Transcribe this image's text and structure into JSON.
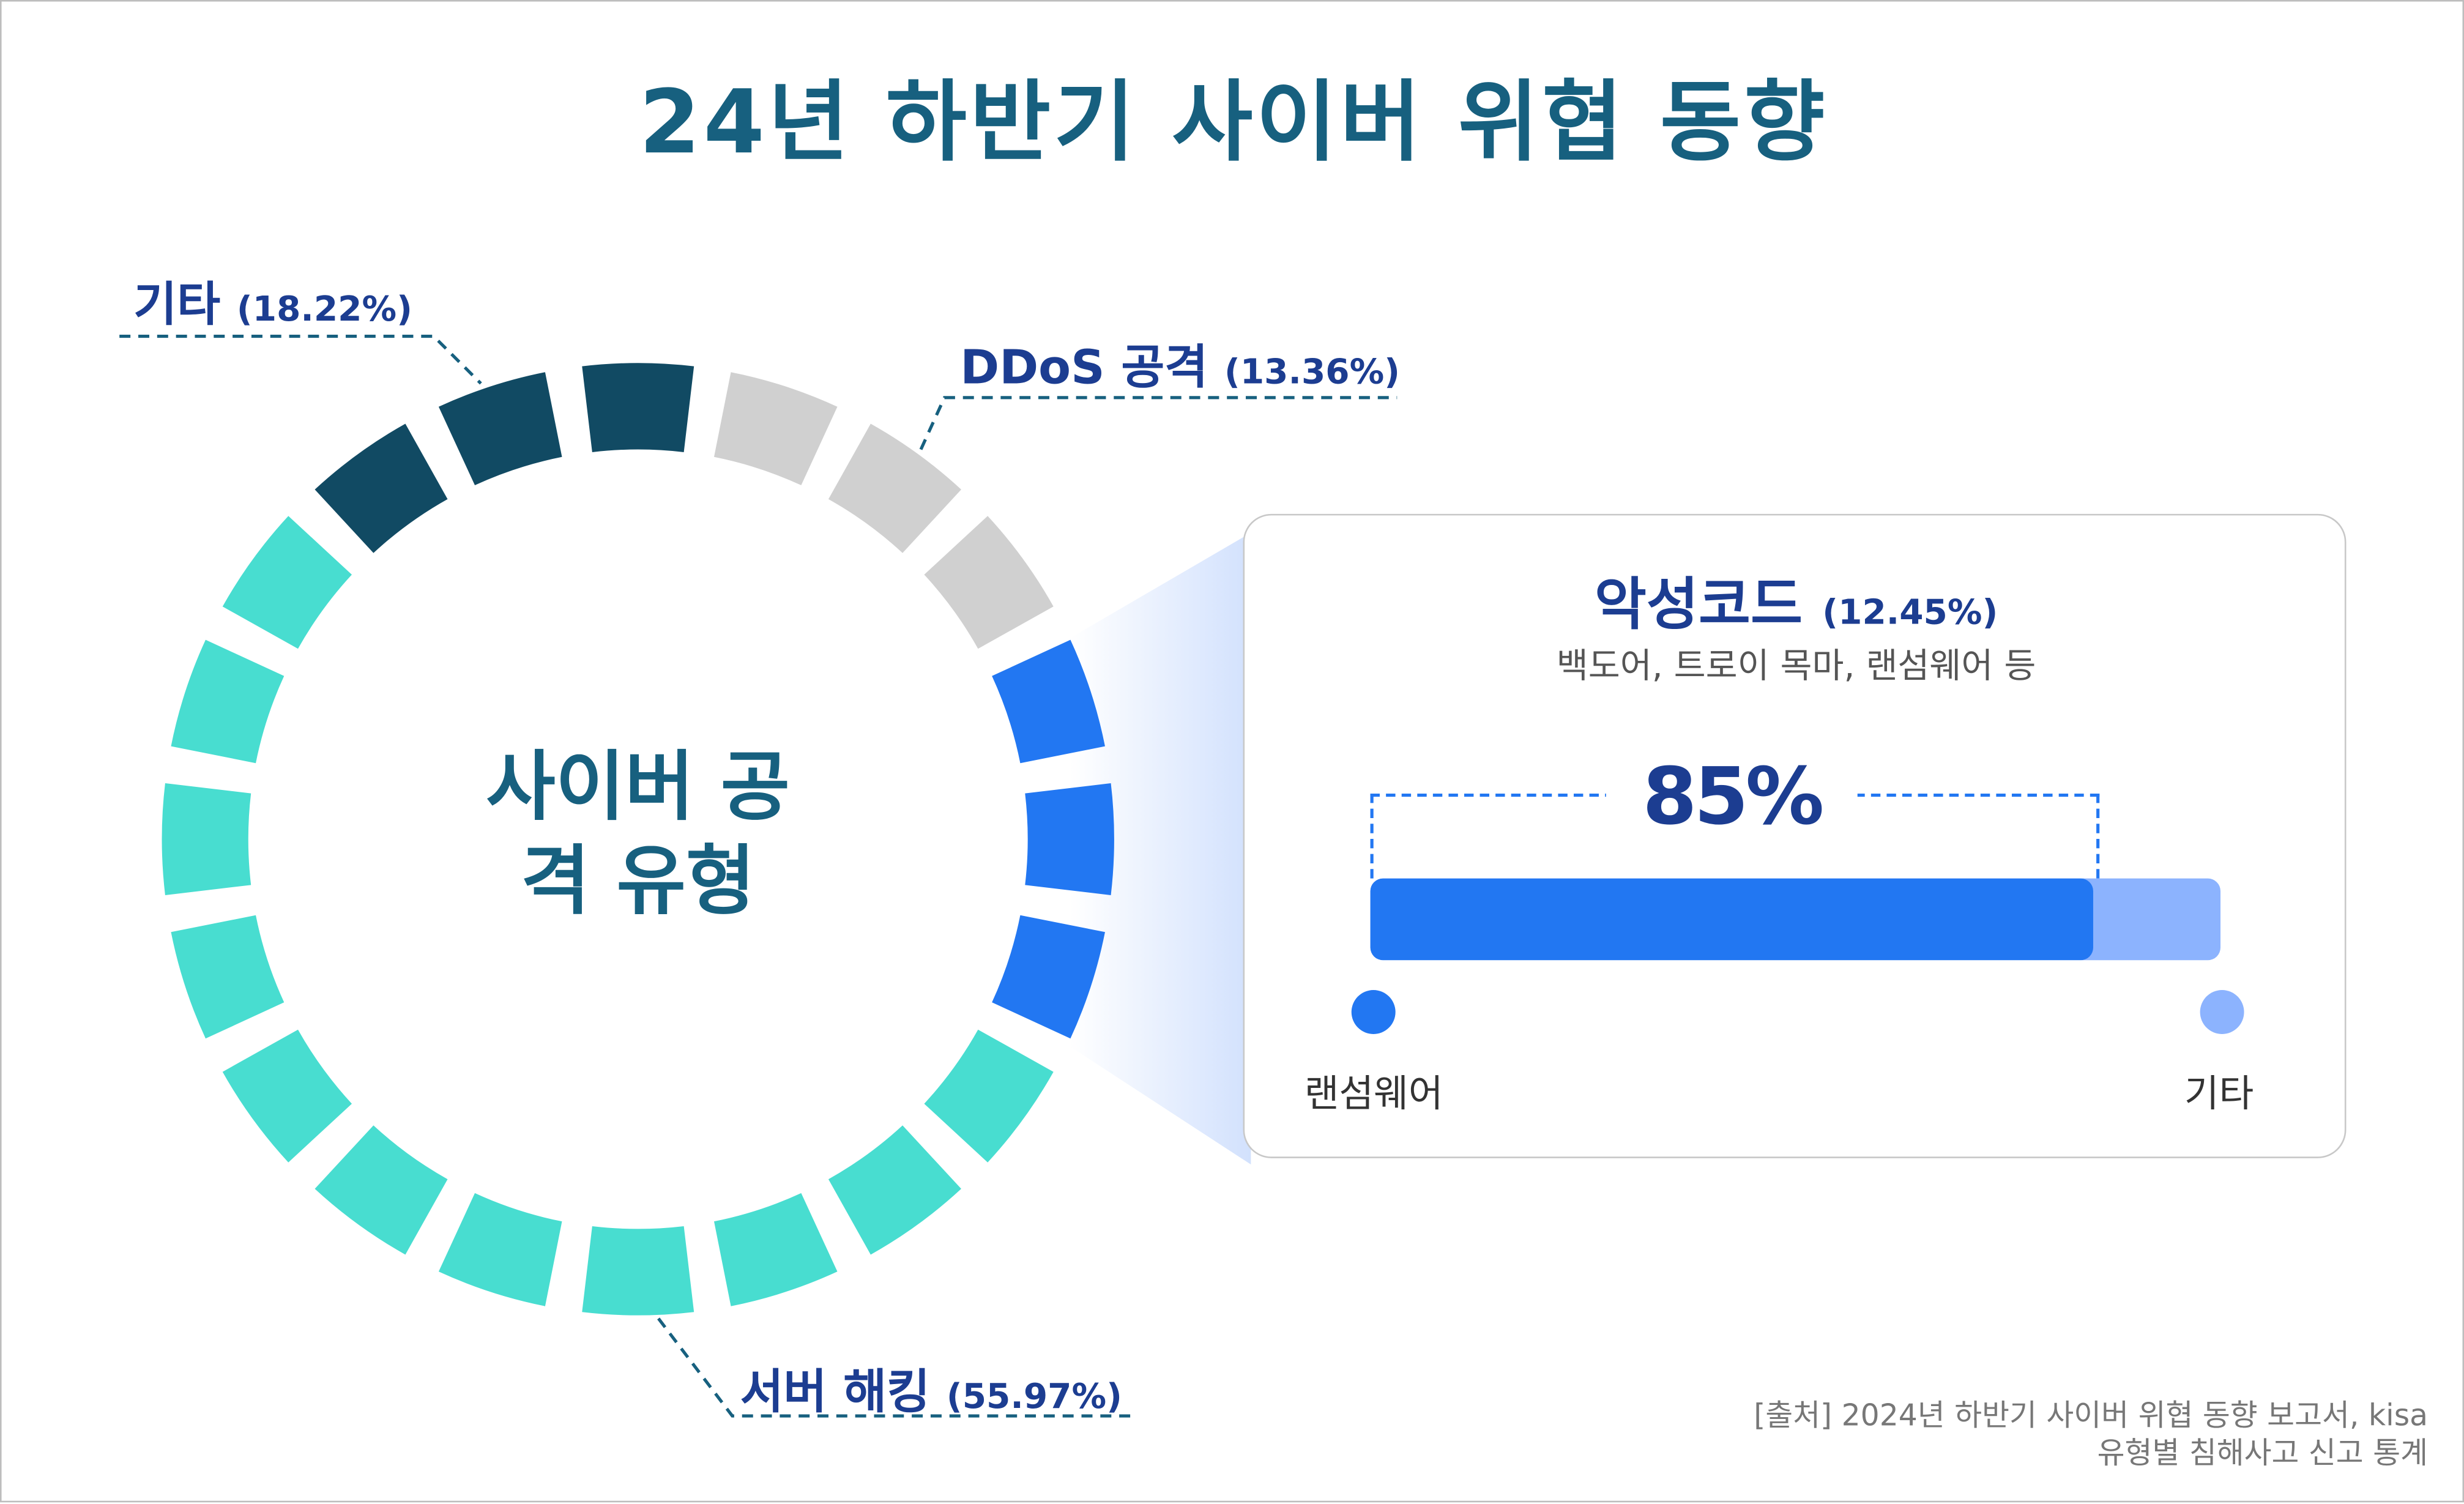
{
  "title": "24년 하반기 사이버 위협 동향",
  "center_label_line1": "사이버 공",
  "center_label_line2": "격 유형",
  "labels": {
    "other": {
      "name": "기타",
      "pct": "(18.22%)"
    },
    "ddos": {
      "name": "DDoS 공격",
      "pct": "(13.36%)"
    },
    "hacking": {
      "name": "서버 해킹",
      "pct": "(55.97%)"
    }
  },
  "card": {
    "title": "악성코드",
    "pct": "(12.45%)",
    "subtitle": "백도어, 트로이 목마, 랜섬웨어 등",
    "highlight": "85%",
    "bar_value": 85,
    "legend_left": "랜섬웨어",
    "legend_right": "기타",
    "colors": {
      "main": "#2277f2",
      "rest": "#8cb3fe"
    }
  },
  "source_line1": "[출처] 2024년 하반기 사이버 위협 동향 보고서, kisa",
  "source_line2": "유형별 침해사고 신고 통계",
  "chart_data": {
    "type": "pie",
    "style": "segmented-ring",
    "categories": [
      "기타",
      "DDoS 공격",
      "악성코드",
      "서버 해킹"
    ],
    "values": [
      18.22,
      13.36,
      12.45,
      55.97
    ],
    "segments_per_category": [
      3,
      3,
      3,
      11
    ],
    "colors": [
      "#114a63",
      "#d0d0d0",
      "#2277f2",
      "#48ddd0"
    ]
  }
}
